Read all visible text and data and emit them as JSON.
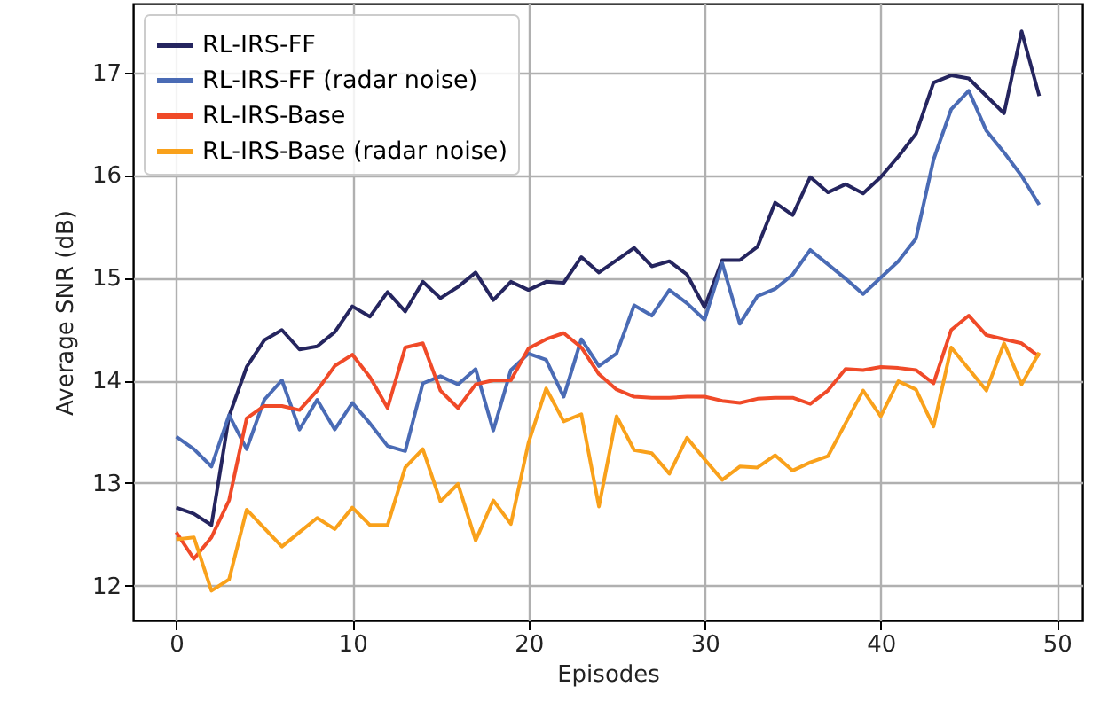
{
  "chart_data": {
    "type": "line",
    "xlabel": "Episodes",
    "ylabel": "Average SNR (dB)",
    "x": [
      0,
      1,
      2,
      3,
      4,
      5,
      6,
      7,
      8,
      9,
      10,
      11,
      12,
      13,
      14,
      15,
      16,
      17,
      18,
      19,
      20,
      21,
      22,
      23,
      24,
      25,
      26,
      27,
      28,
      29,
      30,
      31,
      32,
      33,
      34,
      35,
      36,
      37,
      38,
      39,
      40,
      41,
      42,
      43,
      44,
      45,
      46,
      47,
      48,
      49
    ],
    "series": [
      {
        "name": "RL-IRS-FF",
        "color": "#25255f",
        "values": [
          12.76,
          12.7,
          12.59,
          13.65,
          14.13,
          14.39,
          14.49,
          14.3,
          14.33,
          14.47,
          14.72,
          14.62,
          14.86,
          14.67,
          14.96,
          14.8,
          14.91,
          15.05,
          14.78,
          14.96,
          14.88,
          14.96,
          14.95,
          15.2,
          15.05,
          15.17,
          15.29,
          15.11,
          15.16,
          15.03,
          14.71,
          15.17,
          15.17,
          15.3,
          15.73,
          15.61,
          15.98,
          15.83,
          15.91,
          15.82,
          15.98,
          16.18,
          16.4,
          16.9,
          16.97,
          16.94,
          16.77,
          16.6,
          17.4,
          16.77
        ]
      },
      {
        "name": "RL-IRS-FF (radar noise)",
        "color": "#4a6bb5",
        "values": [
          13.45,
          13.33,
          13.16,
          13.66,
          13.33,
          13.81,
          14.0,
          13.52,
          13.81,
          13.52,
          13.78,
          13.58,
          13.36,
          13.31,
          13.97,
          14.04,
          13.96,
          14.11,
          13.51,
          14.1,
          14.26,
          14.2,
          13.84,
          14.4,
          14.14,
          14.26,
          14.73,
          14.63,
          14.88,
          14.75,
          14.59,
          15.14,
          14.55,
          14.82,
          14.89,
          15.03,
          15.27,
          15.13,
          14.99,
          14.84,
          15.0,
          15.16,
          15.38,
          16.15,
          16.64,
          16.82,
          16.43,
          16.22,
          15.99,
          15.71
        ]
      },
      {
        "name": "RL-IRS-Base",
        "color": "#f04a28",
        "values": [
          12.52,
          12.26,
          12.47,
          12.83,
          13.63,
          13.75,
          13.75,
          13.71,
          13.9,
          14.14,
          14.25,
          14.03,
          13.73,
          14.32,
          14.36,
          13.9,
          13.73,
          13.96,
          14.0,
          14.0,
          14.31,
          14.4,
          14.46,
          14.32,
          14.06,
          13.91,
          13.84,
          13.83,
          13.83,
          13.84,
          13.84,
          13.8,
          13.78,
          13.82,
          13.83,
          13.83,
          13.77,
          13.9,
          14.11,
          14.1,
          14.13,
          14.12,
          14.1,
          13.97,
          14.49,
          14.63,
          14.44,
          14.4,
          14.36,
          14.23
        ]
      },
      {
        "name": "RL-IRS-Base (radar noise)",
        "color": "#f9a11b",
        "values": [
          12.45,
          12.47,
          11.95,
          12.06,
          12.74,
          12.56,
          12.38,
          12.52,
          12.66,
          12.55,
          12.76,
          12.59,
          12.59,
          13.15,
          13.33,
          12.82,
          12.99,
          12.44,
          12.83,
          12.6,
          13.39,
          13.92,
          13.6,
          13.67,
          12.77,
          13.65,
          13.32,
          13.29,
          13.09,
          13.44,
          13.23,
          13.03,
          13.16,
          13.15,
          13.27,
          13.12,
          13.2,
          13.26,
          13.58,
          13.9,
          13.65,
          13.99,
          13.91,
          13.55,
          14.32,
          14.11,
          13.9,
          14.36,
          13.96,
          14.27
        ]
      }
    ],
    "xlim": [
      -2.45,
      51.45
    ],
    "ylim": [
      11.66,
      17.67
    ],
    "xticks": [
      0,
      10,
      20,
      30,
      40,
      50
    ],
    "yticks": [
      12,
      13,
      14,
      15,
      16,
      17
    ],
    "grid": true,
    "legend": "top left",
    "line_style": "solid"
  }
}
